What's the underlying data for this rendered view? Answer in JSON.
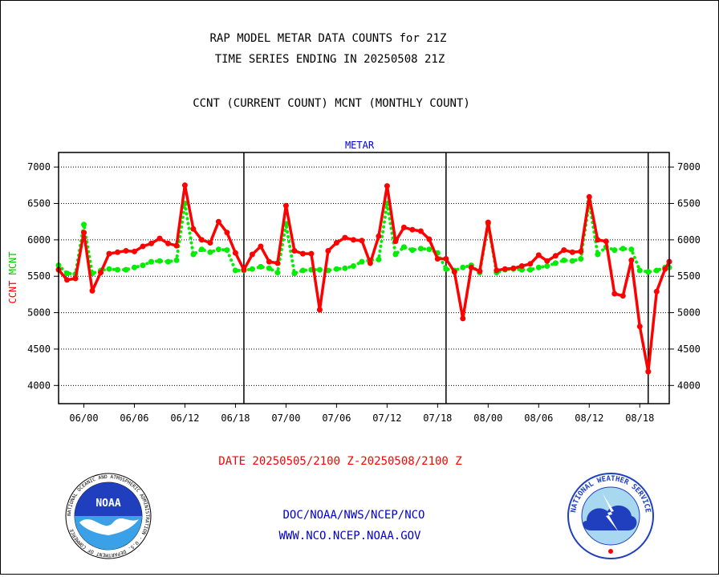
{
  "header": {
    "title_line1": "RAP MODEL METAR DATA COUNTS for 21Z",
    "title_line2": "TIME SERIES ENDING IN 20250508 21Z",
    "subtitle": "CCNT (CURRENT COUNT) MCNT (MONTHLY COUNT)"
  },
  "footer": {
    "date_range": "DATE 20250505/2100 Z-20250508/2100 Z",
    "org_path": "DOC/NOAA/NWS/NCEP/NCO",
    "website": "WWW.NCO.NCEP.NOAA.GOV"
  },
  "logos": {
    "noaa": {
      "name": "noaa-logo",
      "center_text": "NOAA",
      "ring_text": "NATIONAL OCEANIC AND ATMOSPHERIC ADMINISTRATION · U.S. DEPARTMENT OF COMMERCE"
    },
    "nws": {
      "name": "nws-logo",
      "ring_text": "NATIONAL WEATHER SERVICE"
    }
  },
  "chart_data": {
    "type": "line",
    "title": "METAR",
    "ylabel_left": {
      "ccnt": "CCNT",
      "mcnt": "MCNT"
    },
    "ylim": [
      3750,
      7200
    ],
    "yticks": [
      4000,
      4500,
      5000,
      5500,
      6000,
      6500,
      7000
    ],
    "ytick_labels": [
      "4000",
      "4500",
      "5000",
      "5500",
      "6000",
      "6500",
      "7000"
    ],
    "x_range": [
      -2,
      70.5
    ],
    "xticks": [
      1,
      7,
      13,
      19,
      25,
      31,
      37,
      43,
      49,
      55,
      61,
      67
    ],
    "xtick_labels": [
      "06/00",
      "06/06",
      "06/12",
      "06/18",
      "07/00",
      "07/06",
      "07/12",
      "07/18",
      "08/00",
      "08/06",
      "08/12",
      "08/18"
    ],
    "day_boundaries": [
      20,
      44,
      68
    ],
    "grid": true,
    "series": [
      {
        "name": "CCNT",
        "color": "#ff0000",
        "x": [
          -2,
          -1,
          0,
          1,
          2,
          3,
          4,
          5,
          6,
          7,
          8,
          9,
          10,
          11,
          12,
          13,
          14,
          15,
          16,
          17,
          18,
          19,
          20,
          21,
          22,
          23,
          24,
          25,
          26,
          27,
          28,
          29,
          30,
          31,
          32,
          33,
          34,
          35,
          36,
          37,
          38,
          39,
          40,
          41,
          42,
          43,
          44,
          45,
          46,
          47,
          48,
          49,
          50,
          51,
          52,
          53,
          54,
          55,
          56,
          57,
          58,
          59,
          60,
          61,
          62,
          63,
          64,
          65,
          66,
          67,
          68,
          69,
          70,
          70.5
        ],
        "values": [
          5590,
          5450,
          5470,
          6100,
          5300,
          5550,
          5810,
          5830,
          5850,
          5840,
          5910,
          5950,
          6020,
          5950,
          5920,
          6750,
          6150,
          6000,
          5960,
          6250,
          6100,
          5820,
          5590,
          5800,
          5910,
          5700,
          5680,
          6470,
          5850,
          5810,
          5810,
          5040,
          5850,
          5960,
          6030,
          6000,
          5990,
          5680,
          6050,
          6740,
          5980,
          6170,
          6140,
          6120,
          6010,
          5740,
          5740,
          5560,
          4920,
          5620,
          5570,
          6240,
          5580,
          5600,
          5610,
          5640,
          5670,
          5790,
          5710,
          5780,
          5860,
          5830,
          5840,
          6590,
          6000,
          5980,
          5260,
          5230,
          5720,
          4810,
          4190,
          5290,
          5600,
          5700
        ]
      },
      {
        "name": "MCNT",
        "color": "#00ee00",
        "x": [
          -2,
          -1,
          0,
          1,
          2,
          3,
          4,
          5,
          6,
          7,
          8,
          9,
          10,
          11,
          12,
          13,
          14,
          15,
          16,
          17,
          18,
          19,
          20,
          21,
          22,
          23,
          24,
          25,
          26,
          27,
          28,
          29,
          30,
          31,
          32,
          33,
          34,
          35,
          36,
          37,
          38,
          39,
          40,
          41,
          42,
          43,
          44,
          45,
          46,
          47,
          48,
          49,
          50,
          51,
          52,
          53,
          54,
          55,
          56,
          57,
          58,
          59,
          60,
          61,
          62,
          63,
          64,
          65,
          66,
          67,
          68,
          69,
          70,
          70.5
        ],
        "values": [
          5650,
          5540,
          5530,
          6210,
          5540,
          5580,
          5600,
          5590,
          5590,
          5620,
          5650,
          5700,
          5710,
          5700,
          5720,
          6500,
          5800,
          5870,
          5830,
          5870,
          5860,
          5580,
          5580,
          5600,
          5630,
          5610,
          5550,
          6220,
          5540,
          5580,
          5590,
          5590,
          5580,
          5600,
          5610,
          5640,
          5700,
          5720,
          5730,
          6500,
          5800,
          5900,
          5860,
          5880,
          5870,
          5820,
          5600,
          5580,
          5620,
          5650,
          5550,
          6220,
          5550,
          5590,
          5600,
          5590,
          5590,
          5620,
          5640,
          5680,
          5720,
          5710,
          5740,
          6520,
          5800,
          5900,
          5860,
          5880,
          5870,
          5580,
          5560,
          5580,
          5620,
          5620
        ]
      }
    ]
  }
}
